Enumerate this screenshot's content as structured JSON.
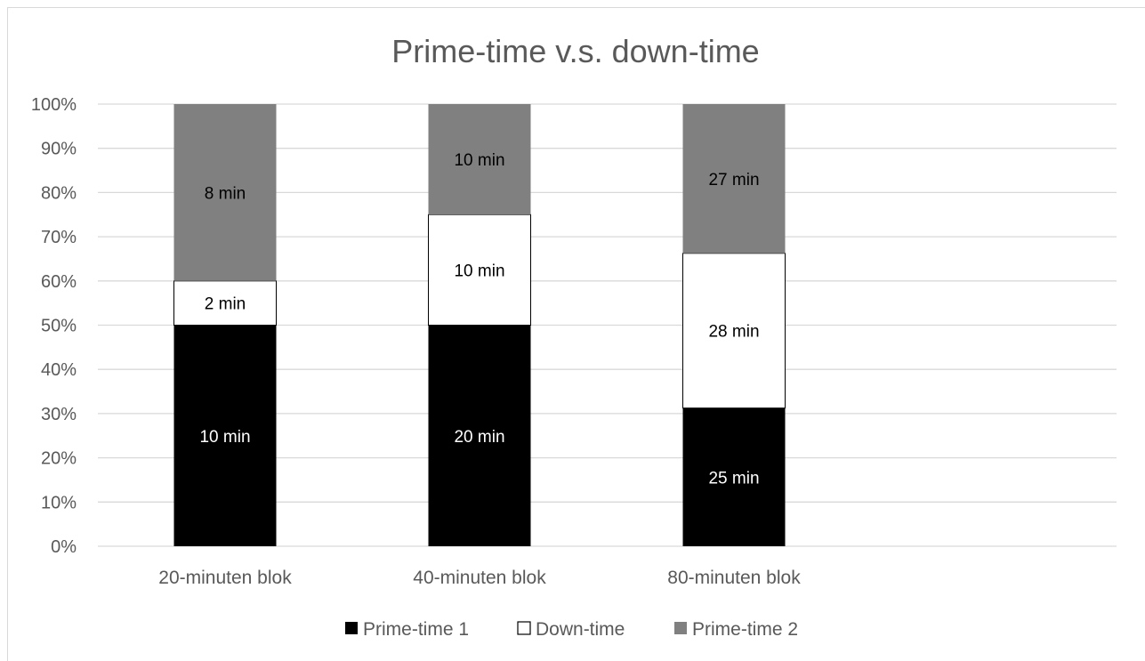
{
  "chart_data": {
    "type": "bar",
    "stacked": true,
    "percent_stacked": true,
    "title": "Prime-time v.s. down-time",
    "categories": [
      "20-minuten blok",
      "40-minuten blok",
      "80-minuten blok"
    ],
    "series": [
      {
        "name": "Prime-time 1",
        "color": "#000000",
        "label_color": "#ffffff",
        "values": [
          10,
          20,
          25
        ],
        "labels": [
          "10 min",
          "20 min",
          "25 min"
        ]
      },
      {
        "name": "Down-time",
        "color": "#ffffff",
        "label_color": "#000000",
        "values": [
          2,
          10,
          28
        ],
        "labels": [
          "2 min",
          "10 min",
          "28 min"
        ]
      },
      {
        "name": "Prime-time 2",
        "color": "#808080",
        "label_color": "#000000",
        "values": [
          8,
          10,
          27
        ],
        "labels": [
          "8 min",
          "10 min",
          "27 min"
        ]
      }
    ],
    "ylim": [
      0,
      100
    ],
    "yticks": [
      "0%",
      "10%",
      "20%",
      "30%",
      "40%",
      "50%",
      "60%",
      "70%",
      "80%",
      "90%",
      "100%"
    ],
    "xlabel": "",
    "ylabel": "",
    "grid": true,
    "legend_position": "bottom"
  }
}
